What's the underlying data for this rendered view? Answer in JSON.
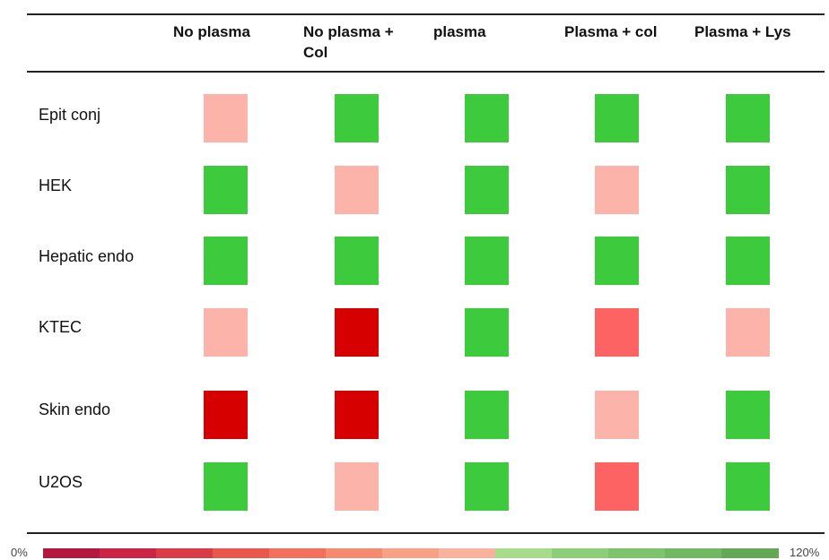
{
  "chart_data": {
    "type": "heatmap",
    "columns": [
      "No plasma",
      "No plasma +\nCol",
      "plasma",
      "Plasma + col",
      "Plasma + Lys"
    ],
    "rows": [
      {
        "label": "Epit conj",
        "cells": [
          "#FBB3AA",
          "#3DCB3D",
          "#3DCB3D",
          "#3DCB3D",
          "#3DCB3D"
        ]
      },
      {
        "label": "HEK",
        "cells": [
          "#3DCB3D",
          "#FBB3AA",
          "#3DCB3D",
          "#FBB3AA",
          "#3DCB3D"
        ]
      },
      {
        "label": "Hepatic endo",
        "cells": [
          "#3DCB3D",
          "#3DCB3D",
          "#3DCB3D",
          "#3DCB3D",
          "#3DCB3D"
        ]
      },
      {
        "label": "KTEC",
        "cells": [
          "#FBB3AA",
          "#D60000",
          "#3DCB3D",
          "#FE6363",
          "#FBB3AA"
        ]
      },
      {
        "label": "Skin endo",
        "cells": [
          "#D60000",
          "#D60000",
          "#3DCB3D",
          "#FBB3AA",
          "#3DCB3D"
        ]
      },
      {
        "label": "U2OS",
        "cells": [
          "#3DCB3D",
          "#FBB3AA",
          "#3DCB3D",
          "#FE6363",
          "#3DCB3D"
        ]
      }
    ],
    "color_scale": {
      "min_label": "0%",
      "max_label": "120%",
      "colors": [
        "#B5163D",
        "#CB2445",
        "#DB3B47",
        "#EC574B",
        "#F2705C",
        "#F58A6F",
        "#F8A184",
        "#F9B39D",
        "#A6DC8A",
        "#8DCF78",
        "#7DC46C",
        "#70B862",
        "#63A955"
      ]
    }
  }
}
